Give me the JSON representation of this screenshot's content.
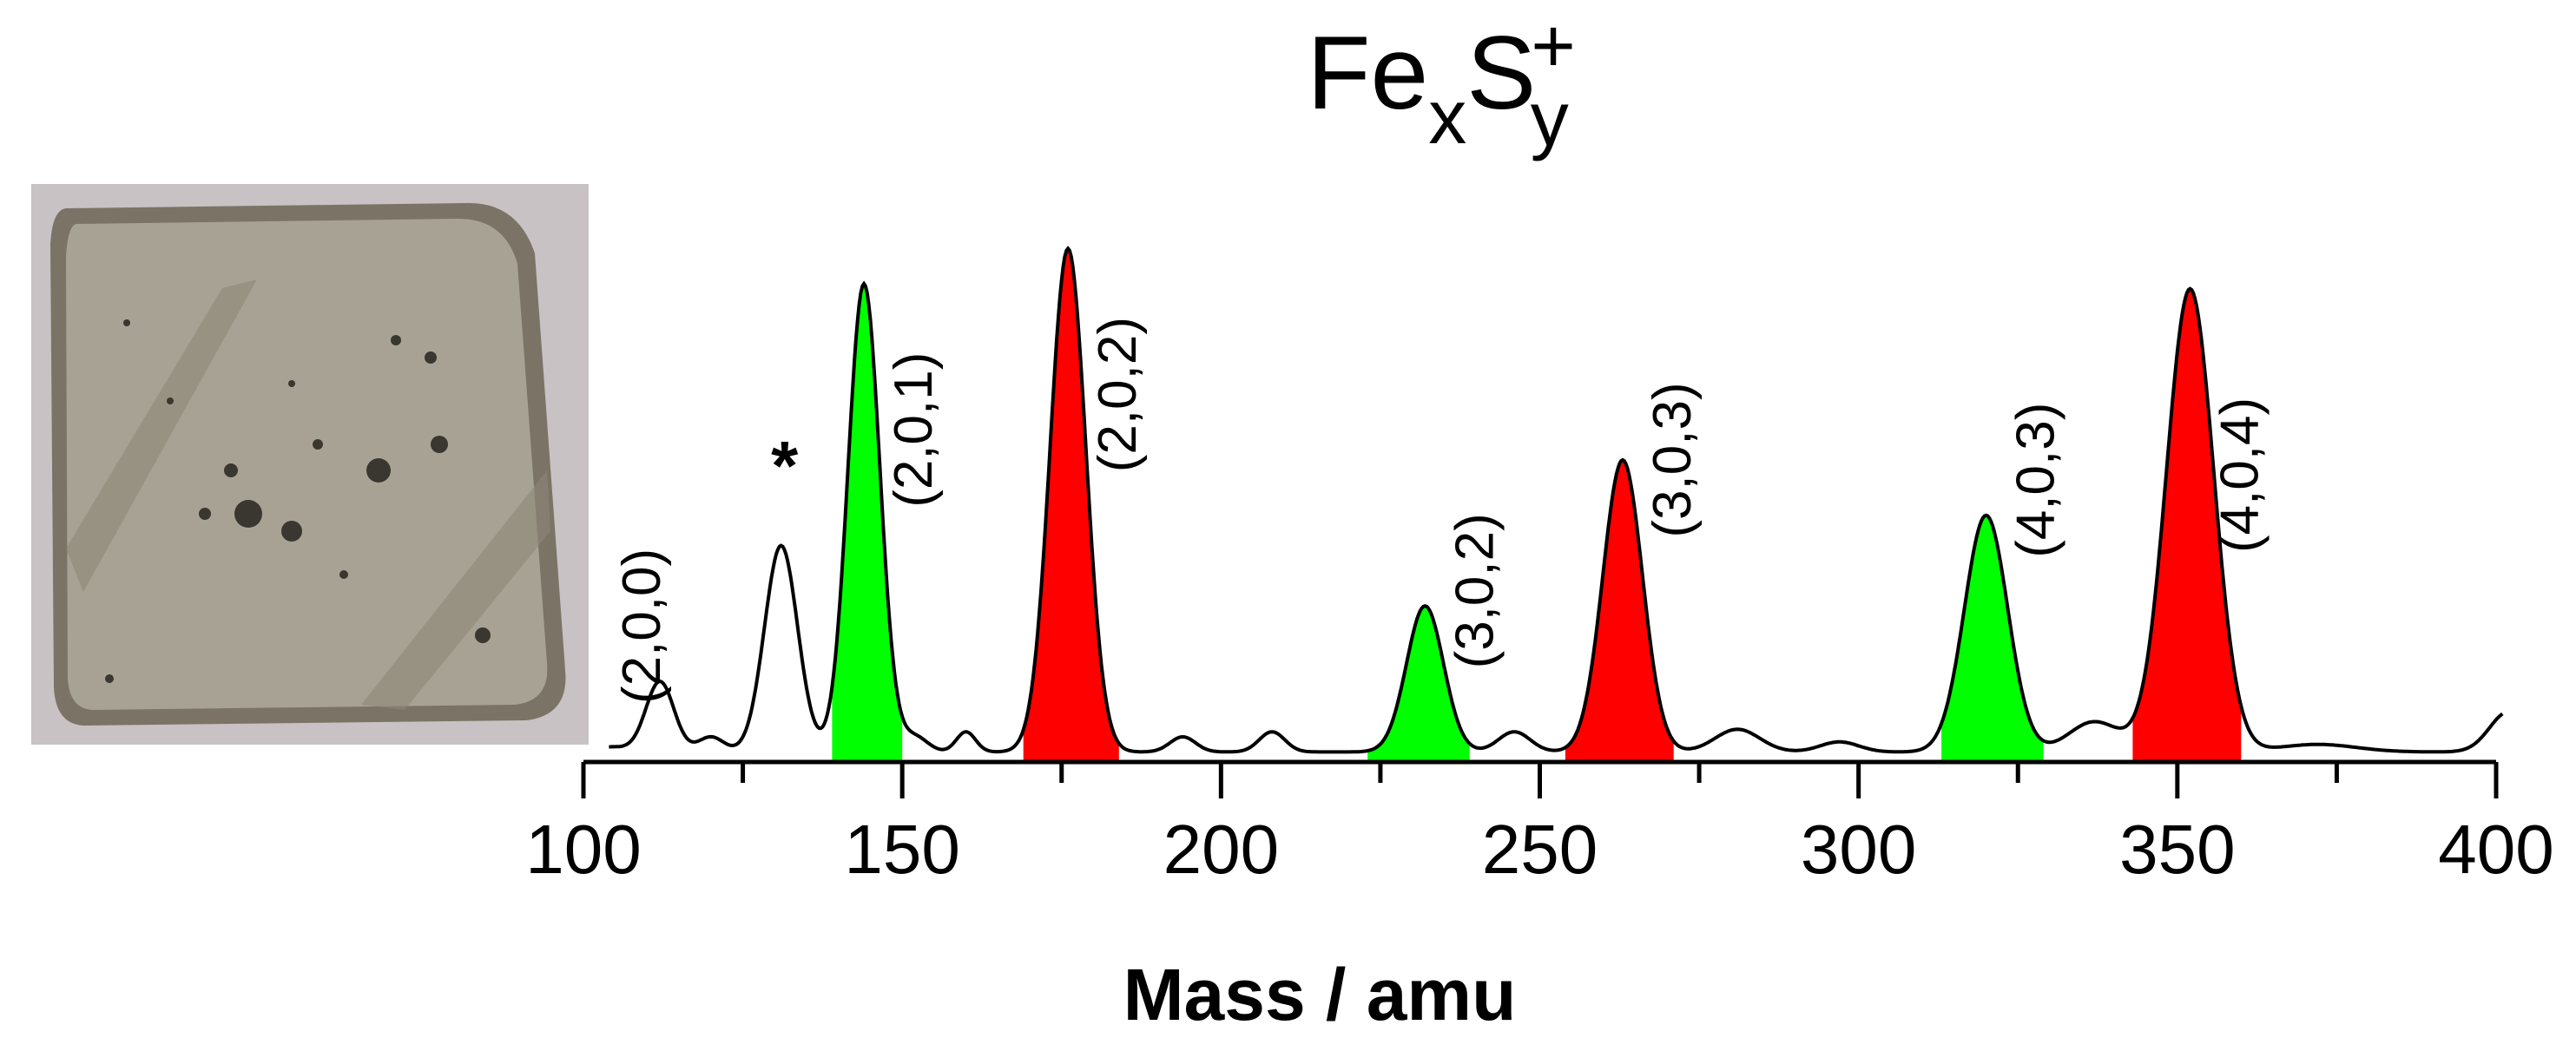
{
  "photo": {
    "icon": "pyrite-sample-photo",
    "bg": "#c9c2c4",
    "surface": "#a8a294",
    "rim": "#7b7466"
  },
  "chart_data": {
    "type": "line",
    "title": {
      "main": "Fe",
      "sub1": "x",
      "mid": "S",
      "sub2": "y",
      "sup": "+"
    },
    "xlabel": "Mass / amu",
    "ylabel": "",
    "xlim": [
      100,
      400
    ],
    "xticks": [
      100,
      150,
      200,
      250,
      300,
      350,
      400
    ],
    "grid": false,
    "line_color": "#000000",
    "fill_colors": {
      "green": "#00ff00",
      "red": "#ff0000"
    },
    "baseline": 0.02,
    "background": [
      {
        "center": 104,
        "amp": 0.01,
        "width": 3
      },
      {
        "center": 120,
        "amp": 0.03,
        "width": 2
      },
      {
        "center": 152,
        "amp": 0.03,
        "width": 2
      },
      {
        "center": 160,
        "amp": 0.04,
        "width": 1.5
      },
      {
        "center": 194,
        "amp": 0.03,
        "width": 2
      },
      {
        "center": 208,
        "amp": 0.04,
        "width": 2
      },
      {
        "center": 246,
        "amp": 0.04,
        "width": 2.5
      },
      {
        "center": 281,
        "amp": 0.045,
        "width": 3.5
      },
      {
        "center": 297,
        "amp": 0.02,
        "width": 3
      },
      {
        "center": 337,
        "amp": 0.06,
        "width": 4
      },
      {
        "center": 372,
        "amp": 0.015,
        "width": 6
      },
      {
        "center": 402,
        "amp": 0.08,
        "width": 3
      }
    ],
    "peaks": [
      {
        "label": "(2,0,0)",
        "mass": 112,
        "intensity": 0.14,
        "width": 2.2,
        "fill": "",
        "label_intensity": 0.27
      },
      {
        "label": "*",
        "mass": 131,
        "intensity": 0.41,
        "width": 2.6,
        "fill": "",
        "label_intensity": 0.61
      },
      {
        "label": "(2,0,1)",
        "mass": 144,
        "intensity": 0.93,
        "width": 2.5,
        "fill": "green",
        "fill_range": [
          139,
          150
        ],
        "label_intensity": 0.66
      },
      {
        "label": "(2,0,2)",
        "mass": 176,
        "intensity": 1.0,
        "width": 2.8,
        "fill": "red",
        "fill_range": [
          169,
          184
        ],
        "label_intensity": 0.73
      },
      {
        "label": "(3,0,2)",
        "mass": 232,
        "intensity": 0.29,
        "width": 2.9,
        "fill": "green",
        "fill_range": [
          223,
          239
        ],
        "label_intensity": 0.34
      },
      {
        "label": "(3,0,3)",
        "mass": 263,
        "intensity": 0.58,
        "width": 3.1,
        "fill": "red",
        "fill_range": [
          254,
          271
        ],
        "label_intensity": 0.6
      },
      {
        "label": "(4,0,3)",
        "mass": 320,
        "intensity": 0.47,
        "width": 3.4,
        "fill": "green",
        "fill_range": [
          313,
          329
        ],
        "label_intensity": 0.56
      },
      {
        "label": "(4,0,4)",
        "mass": 352,
        "intensity": 0.92,
        "width": 3.7,
        "fill": "red",
        "fill_range": [
          343,
          360
        ],
        "label_intensity": 0.57
      }
    ]
  }
}
